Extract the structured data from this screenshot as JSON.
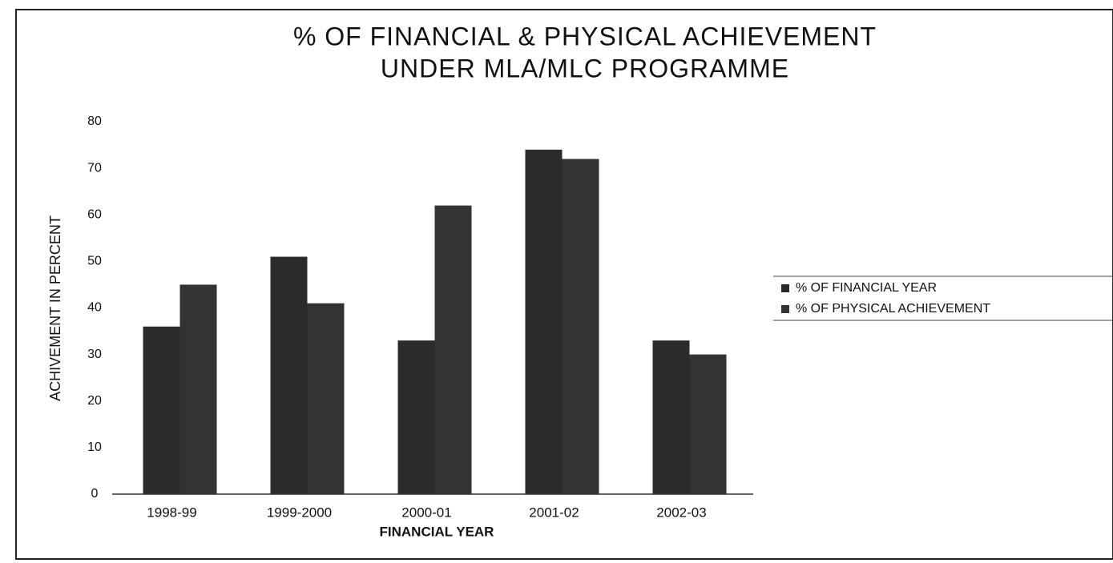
{
  "chart_data": {
    "type": "bar",
    "title": [
      "% OF FINANCIAL & PHYSICAL ACHIEVEMENT",
      "UNDER MLA/MLC PROGRAMME"
    ],
    "x_label": "FINANCIAL YEAR",
    "y_label": "ACHIVEMENT IN PERCENT",
    "categories": [
      "1998-99",
      "1999-2000",
      "2000-01",
      "2001-02",
      "2002-03"
    ],
    "series": [
      {
        "name": "% OF FINANCIAL YEAR",
        "color": "#2b2b2b",
        "values": [
          36,
          51,
          33,
          74,
          33
        ]
      },
      {
        "name": "% OF PHYSICAL ACHIEVEMENT",
        "color": "#333333",
        "values": [
          45,
          41,
          62,
          72,
          30
        ]
      }
    ],
    "ylim": [
      0,
      80
    ],
    "yticks": [
      0,
      10,
      20,
      30,
      40,
      50,
      60,
      70,
      80
    ],
    "grid": false,
    "legend": "right"
  }
}
